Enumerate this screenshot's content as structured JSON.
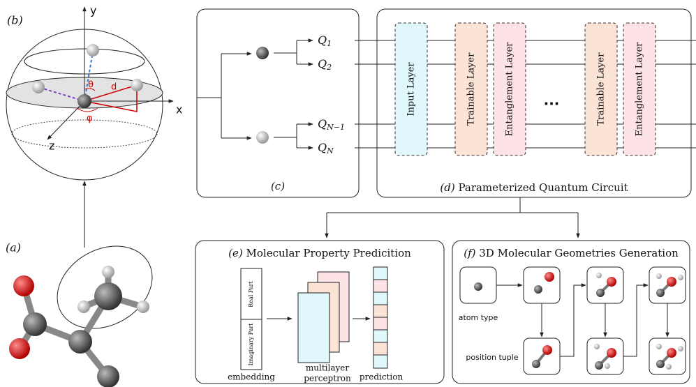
{
  "panel_b": {
    "label": "(b)",
    "axes": {
      "x": "x",
      "y": "y",
      "z": "z"
    },
    "symbols": {
      "theta": "θ",
      "distance": "d",
      "phi": "φ"
    }
  },
  "panel_a": {
    "label": "(a)"
  },
  "panel_c": {
    "label": "(c)",
    "outputs": [
      {
        "base": "Q",
        "sub": "1"
      },
      {
        "base": "Q",
        "sub": "2"
      },
      {
        "base": "Q",
        "sub": "N−1"
      },
      {
        "base": "Q",
        "sub": "N"
      }
    ]
  },
  "panel_d": {
    "label": "(d)",
    "title": "Parameterized Quantum Circuit",
    "layers": [
      "Input Layer",
      "Trainable Layer",
      "Entanglement Layer",
      "Trainable Layer",
      "Entanglement Layer"
    ],
    "ellipsis": "..."
  },
  "panel_e": {
    "label": "(e)",
    "title": "Molecular Property Predicition",
    "embedding_parts": [
      "Real Part",
      "Imaginary Part"
    ],
    "captions": {
      "embedding": "embedding",
      "mlp": [
        "multilayer",
        "perceptron"
      ],
      "prediction": "prediction"
    }
  },
  "panel_f": {
    "label": "(f)",
    "title": "3D Molecular Geometries Generation",
    "captions": {
      "atom_type": "atom type",
      "position_tuple": "position tuple"
    }
  }
}
